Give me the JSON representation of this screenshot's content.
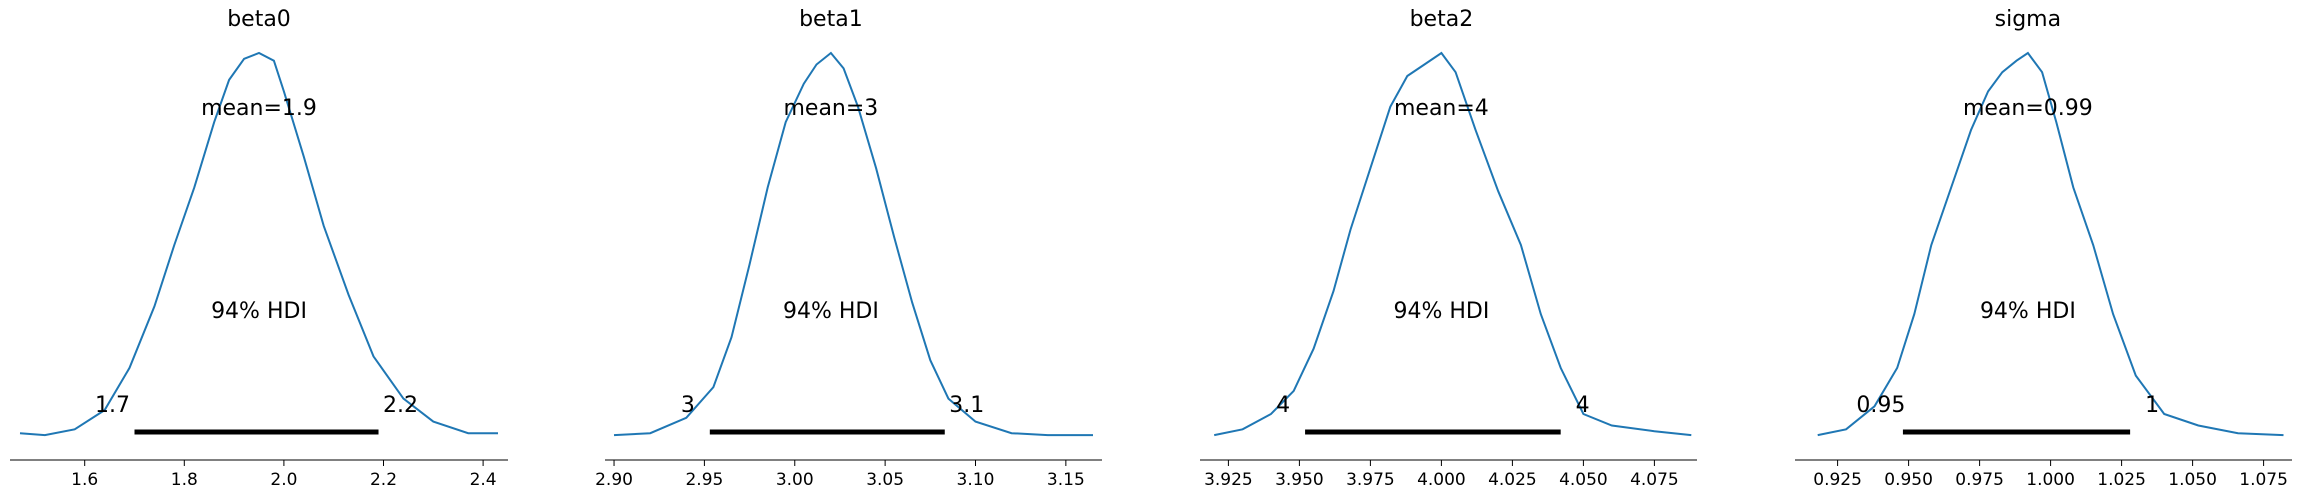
{
  "colors": {
    "density": "#1f77b4",
    "hdi_bar": "#000000",
    "axis": "#000000"
  },
  "chart_data": [
    {
      "type": "line",
      "title": "beta0",
      "mean_label": "mean=1.9",
      "hdi_label": "94% HDI",
      "hdi": [
        1.7,
        2.19
      ],
      "hdi_low_label": "1.7",
      "hdi_high_label": "2.2",
      "xlim": [
        1.45,
        2.45
      ],
      "ylim": [
        0,
        1
      ],
      "xticks": [
        1.6,
        1.8,
        2.0,
        2.2,
        2.4
      ],
      "xtick_labels": [
        "1.6",
        "1.8",
        "2.0",
        "2.2",
        "2.4"
      ],
      "x": [
        1.47,
        1.52,
        1.58,
        1.64,
        1.69,
        1.74,
        1.78,
        1.82,
        1.86,
        1.89,
        1.92,
        1.95,
        1.98,
        2.0,
        2.04,
        2.08,
        2.13,
        2.18,
        2.24,
        2.3,
        2.37,
        2.43
      ],
      "density": [
        0.01,
        0.005,
        0.02,
        0.07,
        0.18,
        0.34,
        0.5,
        0.65,
        0.82,
        0.93,
        0.985,
        1.0,
        0.98,
        0.9,
        0.73,
        0.55,
        0.37,
        0.21,
        0.1,
        0.04,
        0.01,
        0.01
      ]
    },
    {
      "type": "line",
      "title": "beta1",
      "mean_label": "mean=3",
      "hdi_label": "94% HDI",
      "hdi": [
        2.953,
        3.083
      ],
      "hdi_low_label": "3",
      "hdi_high_label": "3.1",
      "xlim": [
        2.895,
        3.17
      ],
      "ylim": [
        0,
        1
      ],
      "xticks": [
        2.9,
        2.95,
        3.0,
        3.05,
        3.1,
        3.15
      ],
      "xtick_labels": [
        "2.90",
        "2.95",
        "3.00",
        "3.05",
        "3.10",
        "3.15"
      ],
      "x": [
        2.9,
        2.92,
        2.94,
        2.955,
        2.965,
        2.975,
        2.985,
        2.995,
        3.005,
        3.012,
        3.02,
        3.027,
        3.035,
        3.045,
        3.055,
        3.065,
        3.075,
        3.085,
        3.1,
        3.12,
        3.14,
        3.165
      ],
      "density": [
        0.005,
        0.01,
        0.05,
        0.13,
        0.26,
        0.45,
        0.65,
        0.82,
        0.92,
        0.97,
        1.0,
        0.96,
        0.86,
        0.7,
        0.52,
        0.35,
        0.2,
        0.1,
        0.04,
        0.01,
        0.005,
        0.005
      ]
    },
    {
      "type": "line",
      "title": "beta2",
      "mean_label": "mean=4",
      "hdi_label": "94% HDI",
      "hdi": [
        3.952,
        4.042
      ],
      "hdi_low_label": "4",
      "hdi_high_label": "4",
      "xlim": [
        3.915,
        4.09
      ],
      "ylim": [
        0,
        1
      ],
      "xticks": [
        3.925,
        3.95,
        3.975,
        4.0,
        4.025,
        4.05,
        4.075
      ],
      "xtick_labels": [
        "3.925",
        "3.950",
        "3.975",
        "4.000",
        "4.025",
        "4.050",
        "4.075"
      ],
      "x": [
        3.92,
        3.93,
        3.94,
        3.948,
        3.955,
        3.962,
        3.968,
        3.975,
        3.982,
        3.988,
        3.994,
        4.0,
        4.005,
        4.012,
        4.02,
        4.028,
        4.035,
        4.042,
        4.05,
        4.06,
        4.075,
        4.088
      ],
      "density": [
        0.005,
        0.02,
        0.06,
        0.12,
        0.23,
        0.38,
        0.54,
        0.7,
        0.86,
        0.94,
        0.97,
        1.0,
        0.95,
        0.8,
        0.64,
        0.5,
        0.32,
        0.18,
        0.06,
        0.03,
        0.015,
        0.005
      ]
    },
    {
      "type": "line",
      "title": "sigma",
      "mean_label": "mean=0.99",
      "hdi_label": "94% HDI",
      "hdi": [
        0.948,
        1.028
      ],
      "hdi_low_label": "0.95",
      "hdi_high_label": "1",
      "xlim": [
        0.91,
        1.085
      ],
      "ylim": [
        0,
        1
      ],
      "xticks": [
        0.925,
        0.95,
        0.975,
        1.0,
        1.025,
        1.05,
        1.075
      ],
      "xtick_labels": [
        "0.925",
        "0.950",
        "0.975",
        "1.000",
        "1.025",
        "1.050",
        "1.075"
      ],
      "x": [
        0.918,
        0.928,
        0.938,
        0.946,
        0.952,
        0.958,
        0.965,
        0.972,
        0.978,
        0.983,
        0.988,
        0.992,
        0.997,
        1.002,
        1.008,
        1.015,
        1.022,
        1.03,
        1.04,
        1.052,
        1.066,
        1.082
      ],
      "density": [
        0.005,
        0.02,
        0.08,
        0.18,
        0.32,
        0.5,
        0.65,
        0.8,
        0.9,
        0.95,
        0.98,
        1.0,
        0.95,
        0.82,
        0.65,
        0.5,
        0.32,
        0.16,
        0.06,
        0.03,
        0.01,
        0.005
      ]
    }
  ]
}
